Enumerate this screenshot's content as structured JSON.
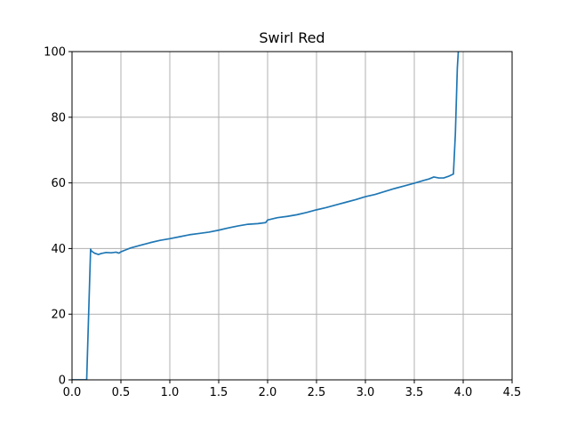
{
  "chart_data": {
    "type": "line",
    "title": "Swirl Red",
    "xlabel": "",
    "ylabel": "",
    "xlim": [
      0,
      4.5
    ],
    "ylim": [
      0,
      100
    ],
    "grid": true,
    "x_ticks": [
      0.0,
      0.5,
      1.0,
      1.5,
      2.0,
      2.5,
      3.0,
      3.5,
      4.0,
      4.5
    ],
    "x_tick_labels": [
      "0.0",
      "0.5",
      "1.0",
      "1.5",
      "2.0",
      "2.5",
      "3.0",
      "3.5",
      "4.0",
      "4.5"
    ],
    "y_ticks": [
      0,
      20,
      40,
      60,
      80,
      100
    ],
    "y_tick_labels": [
      "0",
      "20",
      "40",
      "60",
      "80",
      "100"
    ],
    "series": [
      {
        "color": "#1f77b4",
        "x": [
          0.0,
          0.13,
          0.15,
          0.17,
          0.19,
          0.2,
          0.23,
          0.27,
          0.3,
          0.35,
          0.4,
          0.45,
          0.48,
          0.5,
          0.55,
          0.6,
          0.7,
          0.8,
          0.9,
          1.0,
          1.1,
          1.2,
          1.3,
          1.4,
          1.5,
          1.6,
          1.7,
          1.8,
          1.9,
          1.98,
          2.0,
          2.1,
          2.2,
          2.3,
          2.4,
          2.5,
          2.6,
          2.7,
          2.8,
          2.9,
          3.0,
          3.1,
          3.2,
          3.3,
          3.4,
          3.5,
          3.6,
          3.65,
          3.7,
          3.75,
          3.8,
          3.85,
          3.9,
          3.92,
          3.94,
          3.95
        ],
        "y": [
          0,
          0,
          0,
          20,
          39.8,
          39.2,
          38.6,
          38.2,
          38.5,
          38.8,
          38.7,
          38.9,
          38.6,
          39.0,
          39.6,
          40.2,
          41.0,
          41.8,
          42.5,
          43.0,
          43.6,
          44.2,
          44.6,
          45.0,
          45.6,
          46.3,
          46.9,
          47.4,
          47.6,
          47.9,
          48.7,
          49.4,
          49.8,
          50.3,
          51.0,
          51.8,
          52.5,
          53.3,
          54.1,
          54.9,
          55.8,
          56.5,
          57.4,
          58.3,
          59.1,
          59.9,
          60.8,
          61.2,
          61.8,
          61.5,
          61.5,
          62.0,
          62.7,
          75,
          95,
          100
        ]
      }
    ]
  }
}
